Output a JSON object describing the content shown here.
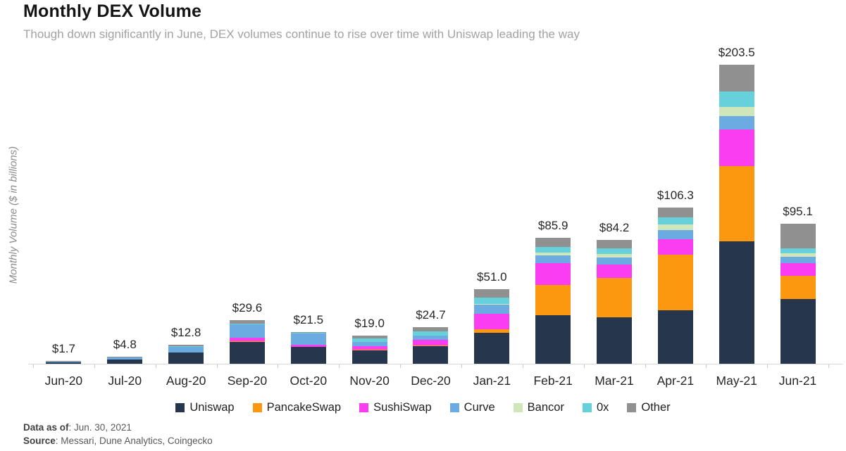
{
  "header": {
    "title": "Monthly DEX Volume",
    "subtitle": "Though down significantly in June, DEX volumes continue to rise over time with Uniswap leading the way"
  },
  "chart_data": {
    "type": "bar",
    "stacked": true,
    "title": "Monthly DEX Volume",
    "ylabel": "Monthly Volume ($ in billions)",
    "xlabel": "",
    "ylim": [
      0,
      209
    ],
    "grid": false,
    "legend_position": "bottom",
    "categories": [
      "Jun-20",
      "Jul-20",
      "Aug-20",
      "Sep-20",
      "Oct-20",
      "Nov-20",
      "Dec-20",
      "Jan-21",
      "Feb-21",
      "Mar-21",
      "Apr-21",
      "May-21",
      "Jun-21"
    ],
    "totals": [
      1.7,
      4.8,
      12.8,
      29.6,
      21.5,
      19.0,
      24.7,
      51.0,
      85.9,
      84.2,
      106.3,
      203.5,
      95.1
    ],
    "bar_total_labels": [
      "$1.7",
      "$4.8",
      "$12.8",
      "$29.6",
      "$21.5",
      "$19.0",
      "$24.7",
      "$51.0",
      "$85.9",
      "$84.2",
      "$106.3",
      "$203.5",
      "$95.1"
    ],
    "series": [
      {
        "name": "Uniswap",
        "color": "#26374d",
        "values": [
          0.8,
          3.0,
          7.8,
          15.0,
          11.5,
          9.1,
          11.9,
          21.3,
          33.1,
          31.7,
          36.2,
          83.5,
          44.2
        ]
      },
      {
        "name": "PancakeSwap",
        "color": "#fb9810",
        "values": [
          0.0,
          0.0,
          0.0,
          0.1,
          0.2,
          0.3,
          0.5,
          2.1,
          20.5,
          26.8,
          38.0,
          51.2,
          15.8
        ]
      },
      {
        "name": "SushiSwap",
        "color": "#fa3df0",
        "values": [
          0.0,
          0.0,
          0.0,
          2.7,
          1.1,
          2.4,
          3.8,
          10.4,
          15.0,
          8.8,
          10.6,
          24.8,
          8.4
        ]
      },
      {
        "name": "Curve",
        "color": "#6babe2",
        "values": [
          0.7,
          1.3,
          3.5,
          8.9,
          7.6,
          2.9,
          2.9,
          6.6,
          5.2,
          5.2,
          6.3,
          9.1,
          4.4
        ]
      },
      {
        "name": "Bancor",
        "color": "#cfe6ba",
        "values": [
          0.0,
          0.0,
          0.1,
          0.2,
          0.1,
          0.2,
          0.2,
          0.5,
          1.7,
          2.2,
          3.6,
          6.3,
          2.2
        ]
      },
      {
        "name": "0x",
        "color": "#66d1da",
        "values": [
          0.1,
          0.2,
          0.4,
          0.5,
          0.4,
          2.3,
          2.7,
          4.2,
          3.9,
          3.7,
          5.1,
          10.6,
          3.5
        ]
      },
      {
        "name": "Other",
        "color": "#909090",
        "values": [
          0.1,
          0.3,
          1.0,
          2.2,
          0.6,
          1.8,
          2.7,
          5.9,
          6.5,
          5.8,
          6.5,
          18.0,
          16.6
        ]
      }
    ]
  },
  "footer": {
    "data_as_of_label": "Data as of",
    "data_as_of_value": ": Jun. 30, 2021",
    "source_label": "Source",
    "source_value": ": Messari, Dune Analytics, Coingecko"
  }
}
